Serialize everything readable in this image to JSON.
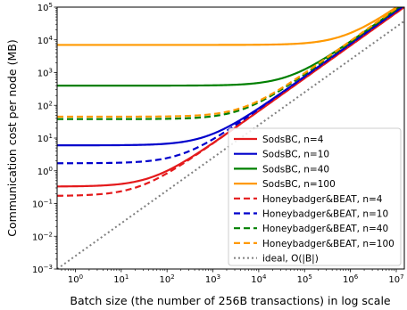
{
  "chart_data": {
    "type": "line",
    "title": "",
    "xlabel": "Batch size (the number of 256B transactions) in log scale",
    "ylabel": "Communication cost per node (MB)",
    "xscale": "log",
    "yscale": "log",
    "xlim": [
      0.4,
      15000000
    ],
    "ylim": [
      0.001,
      100000
    ],
    "xticks": [
      {
        "value": 1,
        "base": "10",
        "exp": "0"
      },
      {
        "value": 10,
        "base": "10",
        "exp": "1"
      },
      {
        "value": 100,
        "base": "10",
        "exp": "2"
      },
      {
        "value": 1000,
        "base": "10",
        "exp": "3"
      },
      {
        "value": 10000,
        "base": "10",
        "exp": "4"
      },
      {
        "value": 100000,
        "base": "10",
        "exp": "5"
      },
      {
        "value": 1000000,
        "base": "10",
        "exp": "6"
      },
      {
        "value": 10000000,
        "base": "10",
        "exp": "7"
      }
    ],
    "yticks": [
      {
        "value": 0.001,
        "base": "10",
        "exp": "−3"
      },
      {
        "value": 0.01,
        "base": "10",
        "exp": "−2"
      },
      {
        "value": 0.1,
        "base": "10",
        "exp": "−1"
      },
      {
        "value": 1,
        "base": "10",
        "exp": "0"
      },
      {
        "value": 10,
        "base": "10",
        "exp": "1"
      },
      {
        "value": 100,
        "base": "10",
        "exp": "2"
      },
      {
        "value": 1000,
        "base": "10",
        "exp": "3"
      },
      {
        "value": 10000,
        "base": "10",
        "exp": "4"
      },
      {
        "value": 100000,
        "base": "10",
        "exp": "5"
      }
    ],
    "grid": false,
    "legend_position": "lower-right",
    "series": [
      {
        "name": "SodsBC, n=4",
        "color": "#e41a1c",
        "dash": "solid",
        "base": 0.33,
        "slope": 0.0067
      },
      {
        "name": "SodsBC, n=10",
        "color": "#0000cc",
        "dash": "solid",
        "base": 6.0,
        "slope": 0.0075
      },
      {
        "name": "SodsBC, n=40",
        "color": "#008000",
        "dash": "solid",
        "base": 400,
        "slope": 0.0085
      },
      {
        "name": "SodsBC, n=100",
        "color": "#ff9900",
        "dash": "solid",
        "base": 7000,
        "slope": 0.0092
      },
      {
        "name": "Honeybadger&BEAT, n=4",
        "color": "#e41a1c",
        "dash": "dashed",
        "base": 0.17,
        "slope": 0.0067
      },
      {
        "name": "Honeybadger&BEAT, n=10",
        "color": "#0000cc",
        "dash": "dashed",
        "base": 1.7,
        "slope": 0.0075
      },
      {
        "name": "Honeybadger&BEAT, n=40",
        "color": "#008000",
        "dash": "dashed",
        "base": 38,
        "slope": 0.0085
      },
      {
        "name": "Honeybadger&BEAT, n=100",
        "color": "#ff9900",
        "dash": "dashed",
        "base": 45,
        "slope": 0.0092
      },
      {
        "name": "ideal, O(|B|)",
        "color": "#808080",
        "dash": "dotted",
        "base": 0,
        "slope": 0.0025
      }
    ]
  }
}
